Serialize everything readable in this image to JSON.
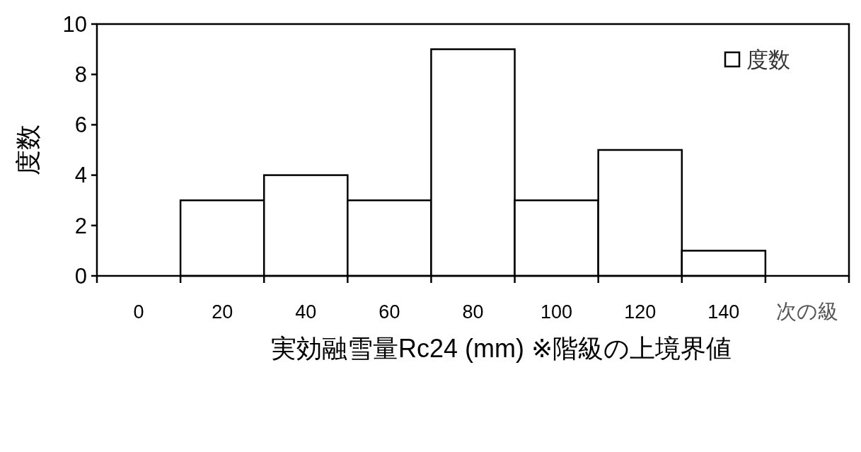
{
  "chart_data": {
    "type": "bar",
    "xlabel": "実効融雪量Rc24  (mm)  ※階級の上境界値",
    "ylabel": "度数",
    "categories": [
      "0",
      "20",
      "40",
      "60",
      "80",
      "100",
      "120",
      "140",
      "次の級"
    ],
    "series": [
      {
        "name": "度数",
        "color": "#ffffff",
        "values": [
          0,
          3,
          4,
          3,
          9,
          3,
          5,
          1,
          0
        ]
      }
    ],
    "ylim": [
      0,
      10
    ],
    "yticks": [
      0,
      2,
      4,
      6,
      8,
      10
    ],
    "grid": false,
    "legend": "top right"
  }
}
